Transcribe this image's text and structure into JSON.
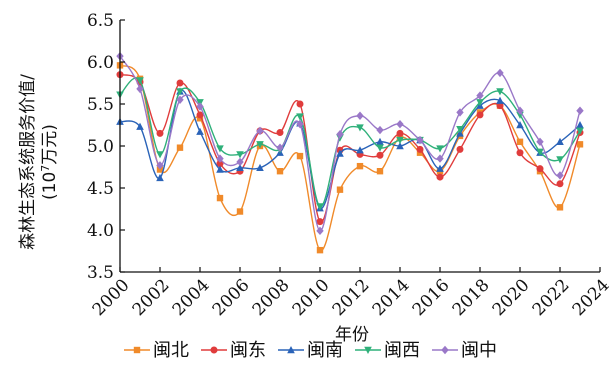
{
  "chart_data": {
    "type": "line",
    "xlabel": "年份",
    "ylabel_line1": "森林生态系统服务价值/",
    "ylabel_line2_prefix": "(10",
    "ylabel_line2_sup": "7",
    "ylabel_line2_suffix": "万元)",
    "xlim": [
      2000,
      2024
    ],
    "ylim": [
      3.5,
      6.5
    ],
    "x_ticks": [
      2000,
      2002,
      2004,
      2006,
      2008,
      2010,
      2012,
      2014,
      2016,
      2018,
      2020,
      2022,
      2024
    ],
    "y_ticks": [
      3.5,
      4.0,
      4.5,
      5.0,
      5.5,
      6.0,
      6.5
    ],
    "y_tick_labels": [
      "3.5",
      "4.0",
      "4.5",
      "5.0",
      "5.5",
      "6.0",
      "6.5"
    ],
    "grid": false,
    "legend_position": "bottom",
    "x": [
      2000,
      2001,
      2002,
      2003,
      2004,
      2005,
      2006,
      2007,
      2008,
      2009,
      2010,
      2011,
      2012,
      2013,
      2014,
      2015,
      2016,
      2017,
      2018,
      2019,
      2020,
      2021,
      2022,
      2023
    ],
    "series": [
      {
        "name": "闽北",
        "color": "#f08a2a",
        "marker": "square",
        "values": [
          5.96,
          5.8,
          4.72,
          4.98,
          5.33,
          4.38,
          4.22,
          5.0,
          4.7,
          4.88,
          3.76,
          4.48,
          4.76,
          4.7,
          5.1,
          4.92,
          4.7,
          5.12,
          5.4,
          5.48,
          5.05,
          4.7,
          4.27,
          5.02
        ]
      },
      {
        "name": "闽东",
        "color": "#e03c3c",
        "marker": "circle",
        "values": [
          5.85,
          5.76,
          5.15,
          5.75,
          5.37,
          4.79,
          4.7,
          5.18,
          5.16,
          5.5,
          4.1,
          4.95,
          4.9,
          4.89,
          5.15,
          4.96,
          4.63,
          4.96,
          5.37,
          5.48,
          4.92,
          4.73,
          4.55,
          5.16
        ]
      },
      {
        "name": "闽南",
        "color": "#2a63b8",
        "marker": "triangle",
        "values": [
          5.29,
          5.23,
          4.62,
          5.65,
          5.17,
          4.72,
          4.74,
          4.74,
          4.92,
          5.27,
          4.26,
          4.91,
          4.95,
          5.05,
          5.0,
          5.07,
          4.73,
          5.15,
          5.48,
          5.54,
          5.25,
          4.92,
          5.05,
          5.25
        ]
      },
      {
        "name": "闽西",
        "color": "#2fb07a",
        "marker": "triangle-down",
        "values": [
          5.61,
          5.78,
          4.9,
          5.65,
          5.52,
          4.97,
          4.9,
          5.02,
          4.96,
          5.35,
          4.28,
          5.1,
          5.22,
          4.98,
          5.07,
          5.07,
          4.97,
          5.2,
          5.52,
          5.65,
          5.37,
          4.93,
          4.84,
          5.18
        ]
      },
      {
        "name": "闽中",
        "color": "#9a78c8",
        "marker": "diamond",
        "values": [
          6.07,
          5.68,
          4.77,
          5.55,
          5.47,
          4.85,
          4.81,
          5.18,
          4.98,
          5.26,
          3.99,
          5.14,
          5.36,
          5.19,
          5.26,
          5.07,
          4.85,
          5.4,
          5.6,
          5.87,
          5.42,
          5.05,
          4.65,
          5.42
        ]
      }
    ]
  }
}
